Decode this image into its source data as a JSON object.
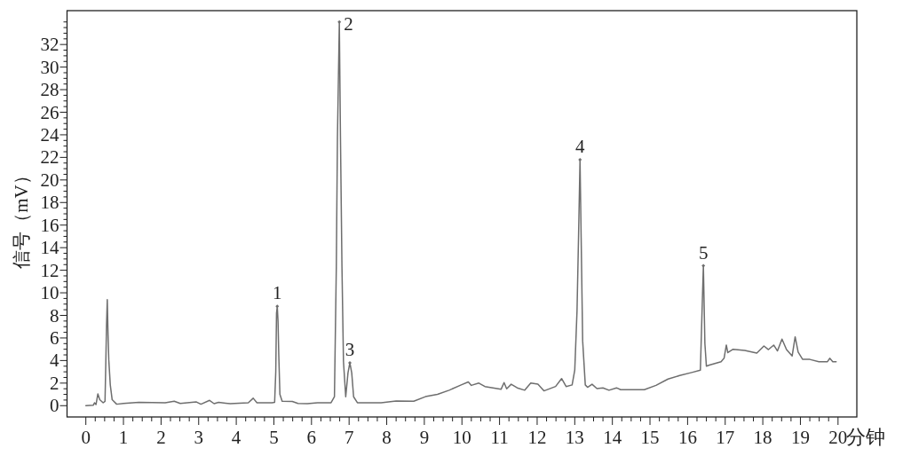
{
  "chart_data": {
    "type": "line",
    "xlabel": "分钟",
    "ylabel": "信号（mV）",
    "color": "#6e6e6e",
    "xlim": [
      -0.5,
      20.5
    ],
    "ylim": [
      -1,
      35
    ],
    "xticks": [
      0,
      {
        "value": 0.25,
        "label": null
      },
      {
        "value": 0.5,
        "label": null
      },
      {
        "value": 0.75,
        "label": null
      },
      1,
      {
        "value": 1.25,
        "label": null
      },
      {
        "value": 1.5,
        "label": null
      },
      {
        "value": 1.75,
        "label": null
      },
      2,
      {
        "value": 2.25,
        "label": null
      },
      {
        "value": 2.5,
        "label": null
      },
      {
        "value": 2.75,
        "label": null
      },
      3,
      {
        "value": 3.25,
        "label": null
      },
      {
        "value": 3.5,
        "label": null
      },
      {
        "value": 3.75,
        "label": null
      },
      4,
      {
        "value": 4.25,
        "label": null
      },
      {
        "value": 4.5,
        "label": null
      },
      {
        "value": 4.75,
        "label": null
      },
      5,
      {
        "value": 5.25,
        "label": null
      },
      {
        "value": 5.5,
        "label": null
      },
      {
        "value": 5.75,
        "label": null
      },
      6,
      {
        "value": 6.25,
        "label": null
      },
      {
        "value": 6.5,
        "label": null
      },
      {
        "value": 6.75,
        "label": null
      },
      7,
      {
        "value": 7.25,
        "label": null
      },
      {
        "value": 7.5,
        "label": null
      },
      {
        "value": 7.75,
        "label": null
      },
      8,
      {
        "value": 8.25,
        "label": null
      },
      {
        "value": 8.5,
        "label": null
      },
      {
        "value": 8.75,
        "label": null
      },
      9,
      {
        "value": 9.25,
        "label": null
      },
      {
        "value": 9.5,
        "label": null
      },
      {
        "value": 9.75,
        "label": null
      },
      10,
      {
        "value": 10.25,
        "label": null
      },
      {
        "value": 10.5,
        "label": null
      },
      {
        "value": 10.75,
        "label": null
      },
      11,
      {
        "value": 11.25,
        "label": null
      },
      {
        "value": 11.5,
        "label": null
      },
      {
        "value": 11.75,
        "label": null
      },
      12,
      {
        "value": 12.25,
        "label": null
      },
      {
        "value": 12.5,
        "label": null
      },
      {
        "value": 12.75,
        "label": null
      },
      13,
      {
        "value": 13.25,
        "label": null
      },
      {
        "value": 13.5,
        "label": null
      },
      {
        "value": 13.75,
        "label": null
      },
      14,
      {
        "value": 14.25,
        "label": null
      },
      {
        "value": 14.5,
        "label": null
      },
      {
        "value": 14.75,
        "label": null
      },
      15,
      {
        "value": 15.25,
        "label": null
      },
      {
        "value": 15.5,
        "label": null
      },
      {
        "value": 15.75,
        "label": null
      },
      16,
      {
        "value": 16.25,
        "label": null
      },
      {
        "value": 16.5,
        "label": null
      },
      {
        "value": 16.75,
        "label": null
      },
      17,
      {
        "value": 17.25,
        "label": null
      },
      {
        "value": 17.5,
        "label": null
      },
      {
        "value": 17.75,
        "label": null
      },
      18,
      {
        "value": 18.25,
        "label": null
      },
      {
        "value": 18.5,
        "label": null
      },
      {
        "value": 18.75,
        "label": null
      },
      19,
      {
        "value": 19.25,
        "label": null
      },
      {
        "value": 19.5,
        "label": null
      },
      {
        "value": 19.75,
        "label": null
      },
      20
    ],
    "yticks": [
      0,
      {
        "value": 0.5,
        "label": null
      },
      {
        "value": 1,
        "label": null
      },
      {
        "value": 1.5,
        "label": null
      },
      2,
      {
        "value": 2.5,
        "label": null
      },
      {
        "value": 3,
        "label": null
      },
      {
        "value": 3.5,
        "label": null
      },
      4,
      {
        "value": 4.5,
        "label": null
      },
      {
        "value": 5,
        "label": null
      },
      {
        "value": 5.5,
        "label": null
      },
      6,
      {
        "value": 6.5,
        "label": null
      },
      {
        "value": 7,
        "label": null
      },
      {
        "value": 7.5,
        "label": null
      },
      8,
      {
        "value": 8.5,
        "label": null
      },
      {
        "value": 9,
        "label": null
      },
      {
        "value": 9.5,
        "label": null
      },
      10,
      {
        "value": 10.5,
        "label": null
      },
      {
        "value": 11,
        "label": null
      },
      {
        "value": 11.5,
        "label": null
      },
      12,
      {
        "value": 12.5,
        "label": null
      },
      {
        "value": 13,
        "label": null
      },
      {
        "value": 13.5,
        "label": null
      },
      14,
      {
        "value": 14.5,
        "label": null
      },
      {
        "value": 15,
        "label": null
      },
      {
        "value": 15.5,
        "label": null
      },
      16,
      {
        "value": 16.5,
        "label": null
      },
      {
        "value": 17,
        "label": null
      },
      {
        "value": 17.5,
        "label": null
      },
      18,
      {
        "value": 18.5,
        "label": null
      },
      {
        "value": 19,
        "label": null
      },
      {
        "value": 19.5,
        "label": null
      },
      20,
      {
        "value": 20.5,
        "label": null
      },
      {
        "value": 21,
        "label": null
      },
      {
        "value": 21.5,
        "label": null
      },
      22,
      {
        "value": 22.5,
        "label": null
      },
      {
        "value": 23,
        "label": null
      },
      {
        "value": 23.5,
        "label": null
      },
      24,
      {
        "value": 24.5,
        "label": null
      },
      {
        "value": 25,
        "label": null
      },
      {
        "value": 25.5,
        "label": null
      },
      26,
      {
        "value": 26.5,
        "label": null
      },
      {
        "value": 27,
        "label": null
      },
      {
        "value": 27.5,
        "label": null
      },
      28,
      {
        "value": 28.5,
        "label": null
      },
      {
        "value": 29,
        "label": null
      },
      {
        "value": 29.5,
        "label": null
      },
      30,
      {
        "value": 30.5,
        "label": null
      },
      {
        "value": 31,
        "label": null
      },
      {
        "value": 31.5,
        "label": null
      },
      32,
      {
        "value": 32.5,
        "label": null
      },
      {
        "value": 33,
        "label": null
      },
      {
        "value": 33.5,
        "label": null
      },
      {
        "value": 34,
        "label": null
      }
    ],
    "x": [
      0,
      0.2,
      0.23,
      0.27,
      0.32,
      0.37,
      0.46,
      0.51,
      0.53,
      0.55,
      0.57,
      0.59,
      0.61,
      0.65,
      0.7,
      0.82,
      1,
      1.41,
      2.11,
      2.35,
      2.51,
      2.94,
      3.06,
      3.29,
      3.41,
      3.53,
      3.84,
      4.32,
      4.45,
      4.55,
      4.95,
      5.02,
      5.05,
      5.07,
      5.09,
      5.11,
      5.13,
      5.16,
      5.22,
      5.49,
      5.64,
      5.89,
      6.16,
      6.52,
      6.61,
      6.66,
      6.69,
      6.74,
      6.77,
      6.81,
      6.85,
      6.91,
      6.97,
      7.02,
      7.07,
      7.12,
      7.22,
      7.85,
      8.25,
      8.72,
      9.03,
      9.35,
      9.66,
      9.98,
      10.17,
      10.25,
      10.45,
      10.61,
      11.04,
      11.12,
      11.19,
      11.31,
      11.47,
      11.67,
      11.83,
      12.02,
      12.18,
      12.49,
      12.65,
      12.77,
      12.93,
      13,
      13.06,
      13.1,
      13.14,
      13.17,
      13.21,
      13.28,
      13.34,
      13.46,
      13.59,
      13.75,
      13.91,
      14.11,
      14.22,
      14.85,
      15.16,
      15.48,
      15.79,
      16.11,
      16.34,
      16.38,
      16.42,
      16.46,
      16.5,
      16.58,
      16.89,
      16.97,
      17.03,
      17.07,
      17.21,
      17.52,
      17.84,
      18.03,
      18.15,
      18.29,
      18.39,
      18.51,
      18.63,
      18.78,
      18.86,
      18.94,
      19.06,
      19.25,
      19.49,
      19.72,
      19.78,
      19.86,
      19.95
    ],
    "values": [
      0,
      0.05,
      0.26,
      0.1,
      1.05,
      0.53,
      0.26,
      0.39,
      3.67,
      7.07,
      9.4,
      6.3,
      4.06,
      1.84,
      0.53,
      0.13,
      0.2,
      0.3,
      0.26,
      0.39,
      0.2,
      0.33,
      0.13,
      0.47,
      0.18,
      0.29,
      0.18,
      0.26,
      0.66,
      0.26,
      0.26,
      0.3,
      3,
      8.2,
      8.8,
      7.5,
      4.5,
      1,
      0.4,
      0.37,
      0.2,
      0.18,
      0.26,
      0.26,
      0.79,
      12.3,
      23.8,
      34,
      23.8,
      12.3,
      3.93,
      0.79,
      2.9,
      3.8,
      2.9,
      0.79,
      0.26,
      0.26,
      0.42,
      0.4,
      0.8,
      1,
      1.37,
      1.84,
      2.1,
      1.8,
      2,
      1.7,
      1.45,
      2.05,
      1.5,
      1.9,
      1.58,
      1.37,
      2,
      1.9,
      1.31,
      1.7,
      2.4,
      1.7,
      1.84,
      3.15,
      8.4,
      14.9,
      21.8,
      14.9,
      5.75,
      1.84,
      1.63,
      1.9,
      1.52,
      1.58,
      1.37,
      1.58,
      1.42,
      1.42,
      1.8,
      2.36,
      2.67,
      2.94,
      3.15,
      7.85,
      12.4,
      5.5,
      3.5,
      3.6,
      3.9,
      4.2,
      5.37,
      4.7,
      5,
      4.9,
      4.66,
      5.29,
      4.97,
      5.37,
      4.85,
      5.9,
      4.97,
      4.4,
      6.1,
      4.74,
      4.1,
      4.1,
      3.9,
      3.9,
      4.2,
      3.9,
      3.9
    ],
    "annotations": [
      {
        "text": "1",
        "x": 5.09,
        "y": 8.8
      },
      {
        "text": "2",
        "x": 6.74,
        "y": 34
      },
      {
        "text": "3",
        "x": 7.02,
        "y": 3.8
      },
      {
        "text": "4",
        "x": 13.14,
        "y": 21.8
      },
      {
        "text": "5",
        "x": 16.42,
        "y": 12.4
      }
    ]
  }
}
